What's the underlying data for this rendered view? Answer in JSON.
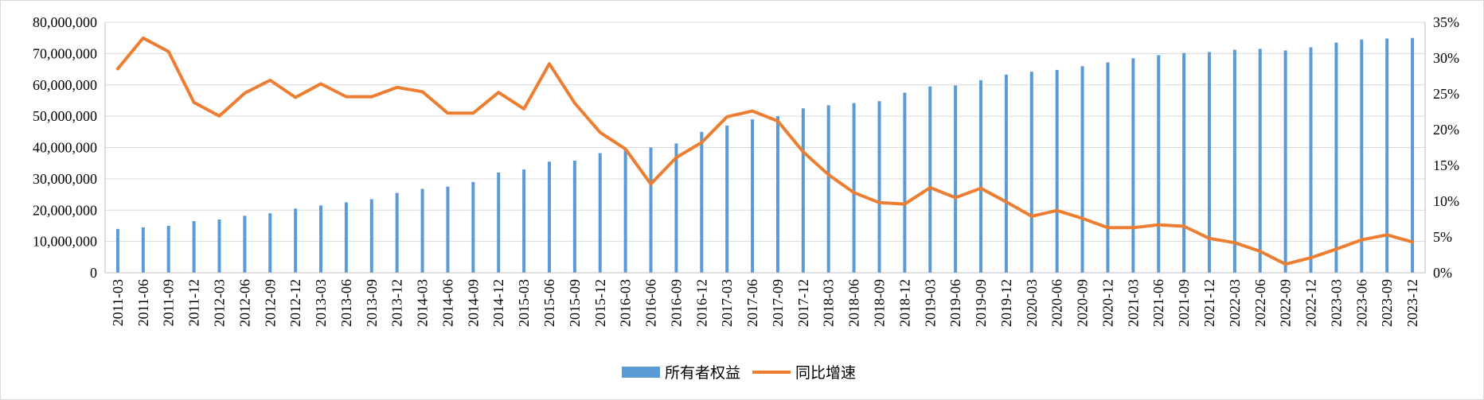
{
  "chart_data": {
    "type": "bar",
    "title": "",
    "xlabel": "",
    "categories": [
      "2011-03",
      "2011-06",
      "2011-09",
      "2011-12",
      "2012-03",
      "2012-06",
      "2012-09",
      "2012-12",
      "2013-03",
      "2013-06",
      "2013-09",
      "2013-12",
      "2014-03",
      "2014-06",
      "2014-09",
      "2014-12",
      "2015-03",
      "2015-06",
      "2015-09",
      "2015-12",
      "2016-03",
      "2016-06",
      "2016-09",
      "2016-12",
      "2017-03",
      "2017-06",
      "2017-09",
      "2017-12",
      "2018-03",
      "2018-06",
      "2018-09",
      "2018-12",
      "2019-03",
      "2019-06",
      "2019-09",
      "2019-12",
      "2020-03",
      "2020-06",
      "2020-09",
      "2020-12",
      "2021-03",
      "2021-06",
      "2021-09",
      "2021-12",
      "2022-03",
      "2022-06",
      "2022-09",
      "2022-12",
      "2023-03",
      "2023-06",
      "2023-09",
      "2023-12"
    ],
    "series": [
      {
        "name": "所有者权益",
        "type": "bar",
        "axis": "left",
        "color": "#5b9bd5",
        "values": [
          14000000,
          14500000,
          15000000,
          16500000,
          17000000,
          18200000,
          19000000,
          20500000,
          21500000,
          22500000,
          23500000,
          25500000,
          26800000,
          27500000,
          29000000,
          32000000,
          33000000,
          35500000,
          35800000,
          38200000,
          39500000,
          40000000,
          41300000,
          45000000,
          47000000,
          49000000,
          50000000,
          52500000,
          53500000,
          54200000,
          54800000,
          57500000,
          59500000,
          59800000,
          61500000,
          63300000,
          64200000,
          64800000,
          66000000,
          67200000,
          68500000,
          69500000,
          70200000,
          70500000,
          71200000,
          71500000,
          71000000,
          72000000,
          73500000,
          74500000,
          74800000,
          75000000
        ]
      },
      {
        "name": "同比增速",
        "type": "line",
        "axis": "right",
        "color": "#ed7d31",
        "values": [
          28.5,
          32.8,
          30.9,
          23.8,
          21.9,
          25.1,
          26.9,
          24.5,
          26.4,
          24.6,
          24.6,
          25.9,
          25.3,
          22.3,
          22.3,
          25.2,
          22.9,
          29.2,
          23.7,
          19.6,
          17.3,
          12.4,
          16.1,
          18.2,
          21.8,
          22.6,
          21.2,
          16.9,
          13.7,
          11.2,
          9.8,
          9.6,
          11.9,
          10.5,
          11.8,
          9.9,
          7.9,
          8.7,
          7.6,
          6.3,
          6.3,
          6.7,
          6.5,
          4.8,
          4.2,
          3.0,
          1.2,
          2.1,
          3.3,
          4.6,
          5.3,
          4.3
        ]
      }
    ],
    "y_left": {
      "ylim": [
        0,
        80000000
      ],
      "ticks": [
        "0",
        "10,000,000",
        "20,000,000",
        "30,000,000",
        "40,000,000",
        "50,000,000",
        "60,000,000",
        "70,000,000",
        "80,000,000"
      ]
    },
    "y_right": {
      "ylim": [
        0,
        35
      ],
      "ticks": [
        "0%",
        "5%",
        "10%",
        "15%",
        "20%",
        "25%",
        "30%",
        "35%"
      ]
    },
    "grid": "horizontal",
    "legend": "bottom-center",
    "legend_labels": [
      "所有者权益",
      "同比增速"
    ]
  }
}
